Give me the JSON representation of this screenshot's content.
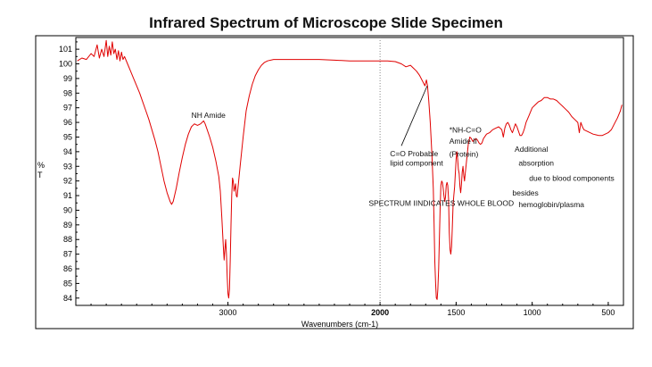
{
  "chart_data": {
    "type": "line",
    "title": "Infrared Spectrum of Microscope Slide Specimen",
    "xlabel": "Wavenumbers (cm-1)",
    "ylabel": "%\nT",
    "xlim": [
      4000,
      400
    ],
    "ylim": [
      83.5,
      101.8
    ],
    "x_ticks": [
      3000,
      2000,
      1500,
      1000,
      500
    ],
    "x_tick_labels": [
      "3000",
      "2000",
      "1500",
      "1000",
      "500"
    ],
    "y_ticks": [
      84,
      85,
      86,
      87,
      88,
      89,
      90,
      91,
      92,
      93,
      94,
      95,
      96,
      97,
      98,
      99,
      100,
      101
    ],
    "y_tick_labels": [
      "84",
      "85",
      "86",
      "87",
      "88",
      "89",
      "90",
      "91",
      "92",
      "93",
      "94",
      "95",
      "96",
      "97",
      "98",
      "99",
      "100",
      "101"
    ],
    "reference_line_x": 2000,
    "series": [
      {
        "name": "spectrum",
        "color": "#e00000",
        "points": [
          [
            3990,
            100.2
          ],
          [
            3960,
            100.4
          ],
          [
            3930,
            100.3
          ],
          [
            3900,
            100.7
          ],
          [
            3880,
            100.5
          ],
          [
            3860,
            101.3
          ],
          [
            3845,
            100.4
          ],
          [
            3830,
            101.0
          ],
          [
            3815,
            100.5
          ],
          [
            3800,
            101.6
          ],
          [
            3790,
            100.5
          ],
          [
            3780,
            101.2
          ],
          [
            3770,
            100.6
          ],
          [
            3760,
            101.5
          ],
          [
            3750,
            100.7
          ],
          [
            3740,
            101.0
          ],
          [
            3730,
            100.3
          ],
          [
            3720,
            100.9
          ],
          [
            3710,
            100.2
          ],
          [
            3700,
            100.8
          ],
          [
            3690,
            100.3
          ],
          [
            3680,
            100.5
          ],
          [
            3660,
            100.0
          ],
          [
            3640,
            99.5
          ],
          [
            3620,
            99.0
          ],
          [
            3600,
            98.5
          ],
          [
            3580,
            98.0
          ],
          [
            3560,
            97.4
          ],
          [
            3540,
            96.8
          ],
          [
            3520,
            96.2
          ],
          [
            3500,
            95.5
          ],
          [
            3480,
            94.8
          ],
          [
            3460,
            94.0
          ],
          [
            3440,
            93.0
          ],
          [
            3420,
            92.0
          ],
          [
            3400,
            91.2
          ],
          [
            3380,
            90.6
          ],
          [
            3370,
            90.4
          ],
          [
            3360,
            90.6
          ],
          [
            3340,
            91.5
          ],
          [
            3320,
            92.6
          ],
          [
            3300,
            93.6
          ],
          [
            3280,
            94.5
          ],
          [
            3260,
            95.2
          ],
          [
            3240,
            95.7
          ],
          [
            3220,
            95.9
          ],
          [
            3200,
            95.8
          ],
          [
            3180,
            95.9
          ],
          [
            3160,
            96.1
          ],
          [
            3150,
            95.9
          ],
          [
            3140,
            95.6
          ],
          [
            3120,
            95.0
          ],
          [
            3100,
            94.3
          ],
          [
            3080,
            93.4
          ],
          [
            3060,
            92.3
          ],
          [
            3050,
            91.3
          ],
          [
            3040,
            89.5
          ],
          [
            3030,
            87.5
          ],
          [
            3025,
            86.6
          ],
          [
            3020,
            87.3
          ],
          [
            3015,
            88.0
          ],
          [
            3010,
            87.0
          ],
          [
            3005,
            85.5
          ],
          [
            3000,
            84.3
          ],
          [
            2995,
            84.0
          ],
          [
            2990,
            84.6
          ],
          [
            2985,
            86.5
          ],
          [
            2980,
            89.0
          ],
          [
            2975,
            91.0
          ],
          [
            2970,
            92.2
          ],
          [
            2965,
            92.0
          ],
          [
            2960,
            91.3
          ],
          [
            2955,
            91.5
          ],
          [
            2950,
            91.8
          ],
          [
            2945,
            91.0
          ],
          [
            2940,
            90.9
          ],
          [
            2935,
            91.4
          ],
          [
            2920,
            93.0
          ],
          [
            2900,
            95.0
          ],
          [
            2880,
            96.8
          ],
          [
            2860,
            97.8
          ],
          [
            2840,
            98.6
          ],
          [
            2820,
            99.2
          ],
          [
            2800,
            99.6
          ],
          [
            2780,
            99.9
          ],
          [
            2760,
            100.1
          ],
          [
            2740,
            100.2
          ],
          [
            2700,
            100.3
          ],
          [
            2600,
            100.3
          ],
          [
            2500,
            100.3
          ],
          [
            2400,
            100.3
          ],
          [
            2300,
            100.25
          ],
          [
            2200,
            100.2
          ],
          [
            2100,
            100.2
          ],
          [
            2000,
            100.2
          ],
          [
            1950,
            100.2
          ],
          [
            1900,
            100.15
          ],
          [
            1860,
            100.0
          ],
          [
            1830,
            99.8
          ],
          [
            1800,
            99.9
          ],
          [
            1780,
            99.7
          ],
          [
            1760,
            99.5
          ],
          [
            1740,
            99.2
          ],
          [
            1720,
            98.8
          ],
          [
            1705,
            98.5
          ],
          [
            1695,
            98.9
          ],
          [
            1688,
            98.5
          ],
          [
            1680,
            97.5
          ],
          [
            1670,
            96.0
          ],
          [
            1660,
            94.0
          ],
          [
            1650,
            91.5
          ],
          [
            1645,
            89.0
          ],
          [
            1640,
            86.5
          ],
          [
            1635,
            85.0
          ],
          [
            1630,
            84.0
          ],
          [
            1625,
            83.9
          ],
          [
            1620,
            84.6
          ],
          [
            1615,
            86.0
          ],
          [
            1610,
            88.0
          ],
          [
            1605,
            90.2
          ],
          [
            1600,
            91.7
          ],
          [
            1595,
            92.0
          ],
          [
            1590,
            91.9
          ],
          [
            1585,
            91.5
          ],
          [
            1580,
            91.0
          ],
          [
            1575,
            90.6
          ],
          [
            1570,
            90.9
          ],
          [
            1565,
            91.7
          ],
          [
            1560,
            91.9
          ],
          [
            1555,
            91.7
          ],
          [
            1550,
            90.8
          ],
          [
            1545,
            88.5
          ],
          [
            1540,
            87.3
          ],
          [
            1535,
            87.0
          ],
          [
            1530,
            87.5
          ],
          [
            1525,
            88.8
          ],
          [
            1520,
            90.4
          ],
          [
            1515,
            91.0
          ],
          [
            1510,
            91.6
          ],
          [
            1505,
            92.5
          ],
          [
            1500,
            93.5
          ],
          [
            1495,
            94.0
          ],
          [
            1490,
            93.5
          ],
          [
            1485,
            92.8
          ],
          [
            1480,
            92.5
          ],
          [
            1475,
            91.6
          ],
          [
            1470,
            91.2
          ],
          [
            1465,
            91.8
          ],
          [
            1460,
            92.6
          ],
          [
            1455,
            93.0
          ],
          [
            1450,
            92.4
          ],
          [
            1445,
            92.0
          ],
          [
            1440,
            92.5
          ],
          [
            1430,
            93.5
          ],
          [
            1420,
            94.5
          ],
          [
            1410,
            95.0
          ],
          [
            1400,
            94.9
          ],
          [
            1390,
            94.7
          ],
          [
            1380,
            94.8
          ],
          [
            1370,
            94.9
          ],
          [
            1360,
            94.8
          ],
          [
            1350,
            94.6
          ],
          [
            1340,
            94.5
          ],
          [
            1330,
            94.6
          ],
          [
            1320,
            94.9
          ],
          [
            1300,
            95.2
          ],
          [
            1280,
            95.3
          ],
          [
            1260,
            95.5
          ],
          [
            1240,
            95.6
          ],
          [
            1220,
            95.7
          ],
          [
            1200,
            95.5
          ],
          [
            1190,
            95.0
          ],
          [
            1180,
            95.6
          ],
          [
            1170,
            95.9
          ],
          [
            1160,
            96.0
          ],
          [
            1150,
            95.8
          ],
          [
            1140,
            95.5
          ],
          [
            1130,
            95.3
          ],
          [
            1120,
            95.6
          ],
          [
            1110,
            95.9
          ],
          [
            1100,
            95.7
          ],
          [
            1090,
            95.4
          ],
          [
            1080,
            95.1
          ],
          [
            1070,
            95.1
          ],
          [
            1060,
            95.3
          ],
          [
            1050,
            95.6
          ],
          [
            1040,
            96.0
          ],
          [
            1020,
            96.5
          ],
          [
            1000,
            97.0
          ],
          [
            980,
            97.2
          ],
          [
            960,
            97.4
          ],
          [
            940,
            97.5
          ],
          [
            920,
            97.7
          ],
          [
            900,
            97.7
          ],
          [
            880,
            97.6
          ],
          [
            860,
            97.6
          ],
          [
            840,
            97.5
          ],
          [
            820,
            97.3
          ],
          [
            800,
            97.1
          ],
          [
            780,
            96.9
          ],
          [
            760,
            96.7
          ],
          [
            740,
            96.4
          ],
          [
            720,
            96.2
          ],
          [
            700,
            96.0
          ],
          [
            690,
            95.3
          ],
          [
            680,
            96.0
          ],
          [
            670,
            95.7
          ],
          [
            660,
            95.5
          ],
          [
            640,
            95.4
          ],
          [
            620,
            95.3
          ],
          [
            600,
            95.2
          ],
          [
            580,
            95.15
          ],
          [
            560,
            95.1
          ],
          [
            540,
            95.1
          ],
          [
            520,
            95.2
          ],
          [
            500,
            95.3
          ],
          [
            480,
            95.5
          ],
          [
            460,
            95.9
          ],
          [
            440,
            96.3
          ],
          [
            420,
            96.8
          ],
          [
            410,
            97.2
          ]
        ]
      }
    ],
    "annotations": [
      {
        "text": "NH Amide",
        "x": 3240,
        "y": 96.3
      },
      {
        "text": "C=O Probable",
        "x": 1935,
        "y": 93.7
      },
      {
        "text": "lipid component",
        "x": 1935,
        "y": 93.05
      },
      {
        "text": "*NH-C=O",
        "x": 1545,
        "y": 95.3
      },
      {
        "text": "Amide II",
        "x": 1545,
        "y": 94.55
      },
      {
        "text": "(Protein)",
        "x": 1545,
        "y": 93.65
      },
      {
        "text": "Additional",
        "x": 1115,
        "y": 94.0
      },
      {
        "text": "absorption",
        "x": 1090,
        "y": 93.05
      },
      {
        "text": "due to blood components",
        "x": 1020,
        "y": 92.0
      },
      {
        "text": "besides",
        "x": 1130,
        "y": 91.0
      },
      {
        "text": "hemoglobin/plasma",
        "x": 1090,
        "y": 90.2
      },
      {
        "text": "SPECTRUM IINDICATES WHOLE BLOOD",
        "x": 2075,
        "y": 90.3
      }
    ],
    "pointer_line": {
      "from": [
        1860,
        94.4
      ],
      "to": [
        1690,
        98.5
      ]
    }
  }
}
